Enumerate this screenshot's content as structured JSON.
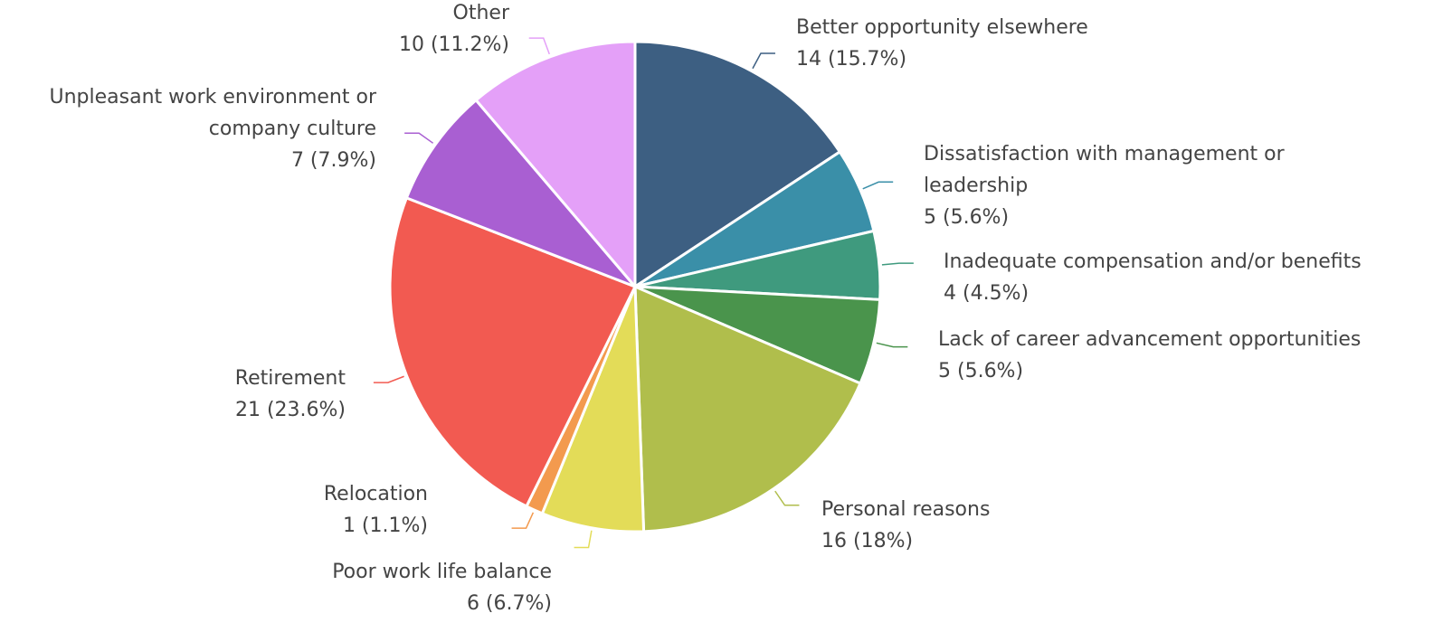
{
  "chart_data": {
    "type": "pie",
    "categories": [
      "Better opportunity elsewhere",
      "Dissatisfaction with management or leadership",
      "Inadequate compensation and/or benefits",
      "Lack of career advancement opportunities",
      "Personal reasons",
      "Poor work life balance",
      "Relocation",
      "Retirement",
      "Unpleasant work environment or company culture",
      "Other"
    ],
    "values": [
      14,
      5,
      4,
      5,
      16,
      6,
      1,
      21,
      7,
      10
    ],
    "value_labels": [
      "14 (15.7%)",
      "5 (5.6%)",
      "4 (4.5%)",
      "5 (5.6%)",
      "16 (18%)",
      "6 (6.7%)",
      "1 (1.1%)",
      "21 (23.6%)",
      "7 (7.9%)",
      "10 (11.2%)"
    ],
    "colors": [
      "#3d5f82",
      "#3a8fa8",
      "#3f9a7e",
      "#4a944c",
      "#b0be4c",
      "#e3dc58",
      "#f39a4e",
      "#f25a51",
      "#a95fd2",
      "#e4a0f8"
    ]
  }
}
